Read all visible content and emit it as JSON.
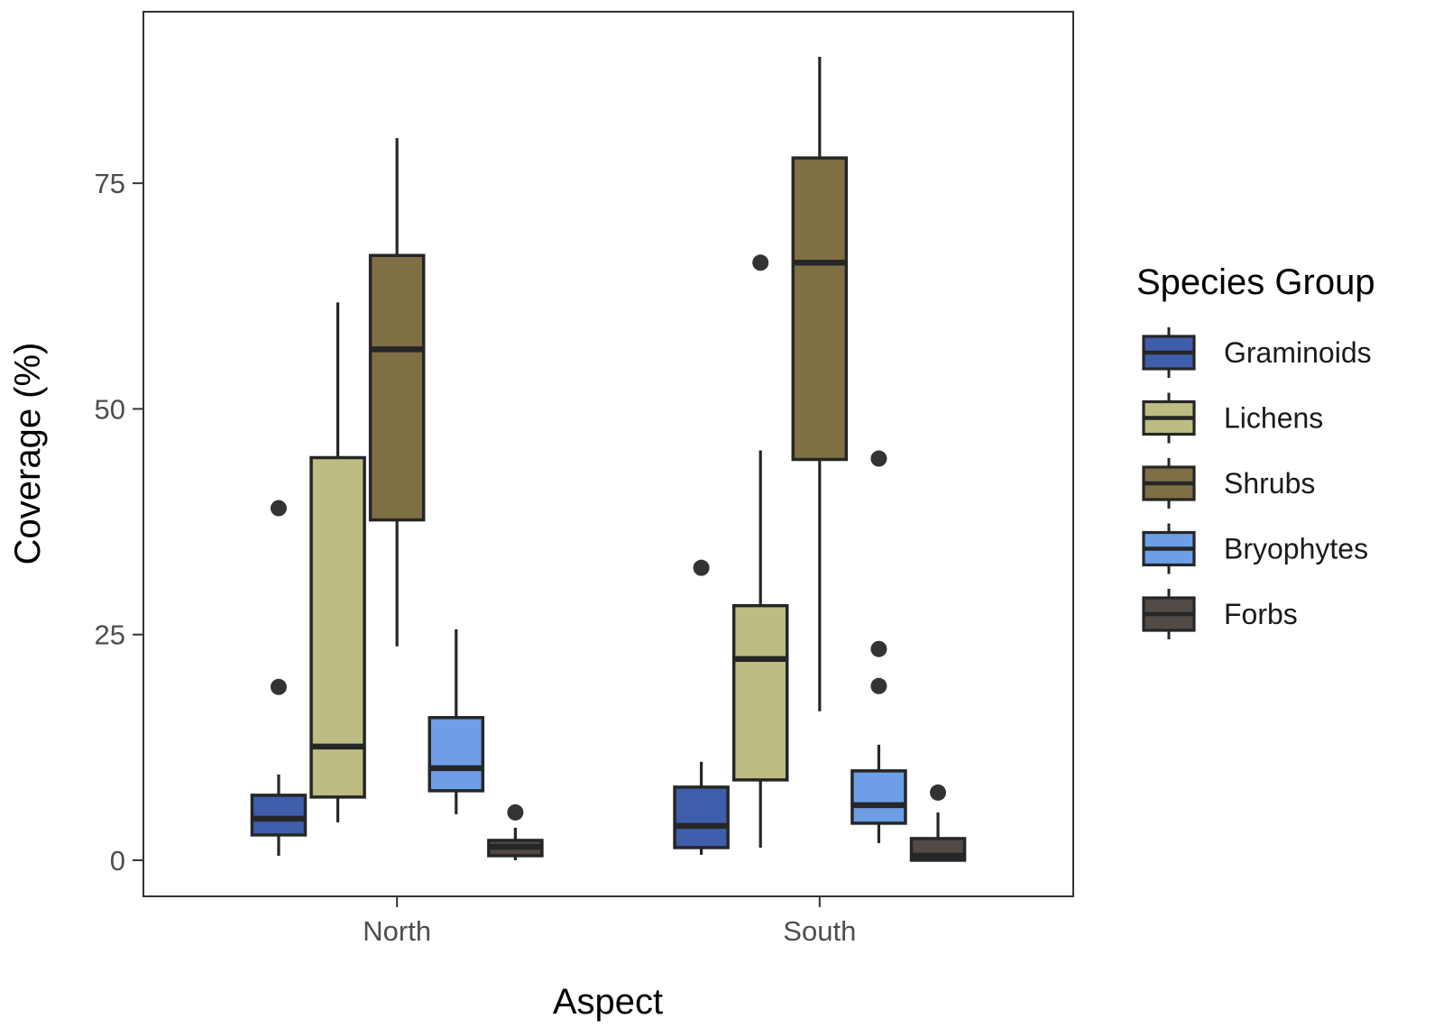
{
  "chart_data": {
    "type": "boxplot",
    "xlabel": "Aspect",
    "ylabel": "Coverage (%)",
    "ylim": [
      -4,
      94
    ],
    "yticks": [
      0,
      25,
      50,
      75
    ],
    "categories": [
      "North",
      "South"
    ],
    "legend": {
      "title": "Species Group",
      "placement": "right"
    },
    "grid": false,
    "series": [
      {
        "name": "Graminoids",
        "color": "#3e5eab",
        "boxes": [
          {
            "category": "North",
            "whisker_low": 0.5,
            "q1": 2.8,
            "median": 4.6,
            "q3": 7.2,
            "whisker_high": 9.5,
            "outliers": [
              19.2,
              39.0
            ]
          },
          {
            "category": "South",
            "whisker_low": 0.6,
            "q1": 1.4,
            "median": 3.8,
            "q3": 8.1,
            "whisker_high": 10.9,
            "outliers": [
              32.4
            ]
          }
        ]
      },
      {
        "name": "Lichens",
        "color": "#bdbd83",
        "boxes": [
          {
            "category": "North",
            "whisker_low": 4.2,
            "q1": 7.0,
            "median": 12.6,
            "q3": 44.6,
            "whisker_high": 61.8,
            "outliers": []
          },
          {
            "category": "South",
            "whisker_low": 1.4,
            "q1": 8.9,
            "median": 22.3,
            "q3": 28.2,
            "whisker_high": 45.4,
            "outliers": [
              66.2
            ]
          }
        ]
      },
      {
        "name": "Shrubs",
        "color": "#7f6f44",
        "boxes": [
          {
            "category": "North",
            "whisker_low": 23.7,
            "q1": 37.7,
            "median": 56.6,
            "q3": 67.0,
            "whisker_high": 80.0,
            "outliers": []
          },
          {
            "category": "South",
            "whisker_low": 16.5,
            "q1": 44.4,
            "median": 66.2,
            "q3": 77.8,
            "whisker_high": 89.0,
            "outliers": []
          }
        ]
      },
      {
        "name": "Bryophytes",
        "color": "#6d9ee6",
        "boxes": [
          {
            "category": "North",
            "whisker_low": 5.1,
            "q1": 7.7,
            "median": 10.2,
            "q3": 15.8,
            "whisker_high": 25.6,
            "outliers": []
          },
          {
            "category": "South",
            "whisker_low": 1.9,
            "q1": 4.1,
            "median": 6.1,
            "q3": 9.9,
            "whisker_high": 12.8,
            "outliers": [
              19.3,
              23.4,
              44.5
            ]
          }
        ]
      },
      {
        "name": "Forbs",
        "color": "#514a47",
        "boxes": [
          {
            "category": "North",
            "whisker_low": 0.0,
            "q1": 0.5,
            "median": 1.5,
            "q3": 2.2,
            "whisker_high": 3.6,
            "outliers": [
              5.3
            ]
          },
          {
            "category": "South",
            "whisker_low": 0.0,
            "q1": 0.0,
            "median": 0.5,
            "q3": 2.4,
            "whisker_high": 5.3,
            "outliers": [
              7.5
            ]
          }
        ]
      }
    ]
  }
}
